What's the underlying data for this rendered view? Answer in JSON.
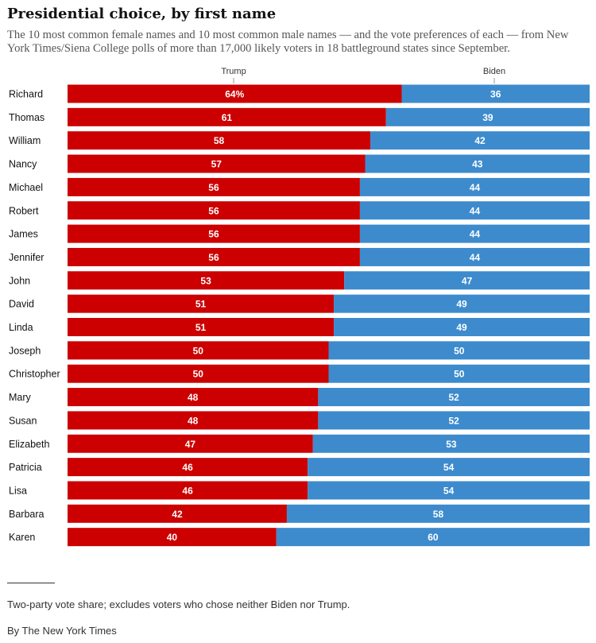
{
  "chart_data": {
    "type": "bar",
    "stacked": true,
    "orientation": "horizontal",
    "title": "Presidential choice, by first name",
    "subtitle": "The 10 most common female names and 10 most common male names — and the vote preferences of each — from New York Times/Siena College polls of more than 17,000 likely voters in 18 battleground states since September.",
    "categories": [
      "Richard",
      "Thomas",
      "William",
      "Nancy",
      "Michael",
      "Robert",
      "James",
      "Jennifer",
      "John",
      "David",
      "Linda",
      "Joseph",
      "Christopher",
      "Mary",
      "Susan",
      "Elizabeth",
      "Patricia",
      "Lisa",
      "Barbara",
      "Karen"
    ],
    "series": [
      {
        "name": "Trump",
        "color": "#cc0000",
        "values": [
          64,
          61,
          58,
          57,
          56,
          56,
          56,
          56,
          53,
          51,
          51,
          50,
          50,
          48,
          48,
          47,
          46,
          46,
          42,
          40
        ]
      },
      {
        "name": "Biden",
        "color": "#3d8bcd",
        "values": [
          36,
          39,
          42,
          43,
          44,
          44,
          44,
          44,
          47,
          49,
          49,
          50,
          50,
          52,
          52,
          53,
          54,
          54,
          58,
          60
        ]
      }
    ],
    "first_value_suffix": "%",
    "xlim": [
      0,
      100
    ],
    "legend": "top"
  },
  "footer": {
    "note": "Two-party vote share; excludes voters who chose neither Biden nor Trump.",
    "credit": "By The New York Times"
  }
}
